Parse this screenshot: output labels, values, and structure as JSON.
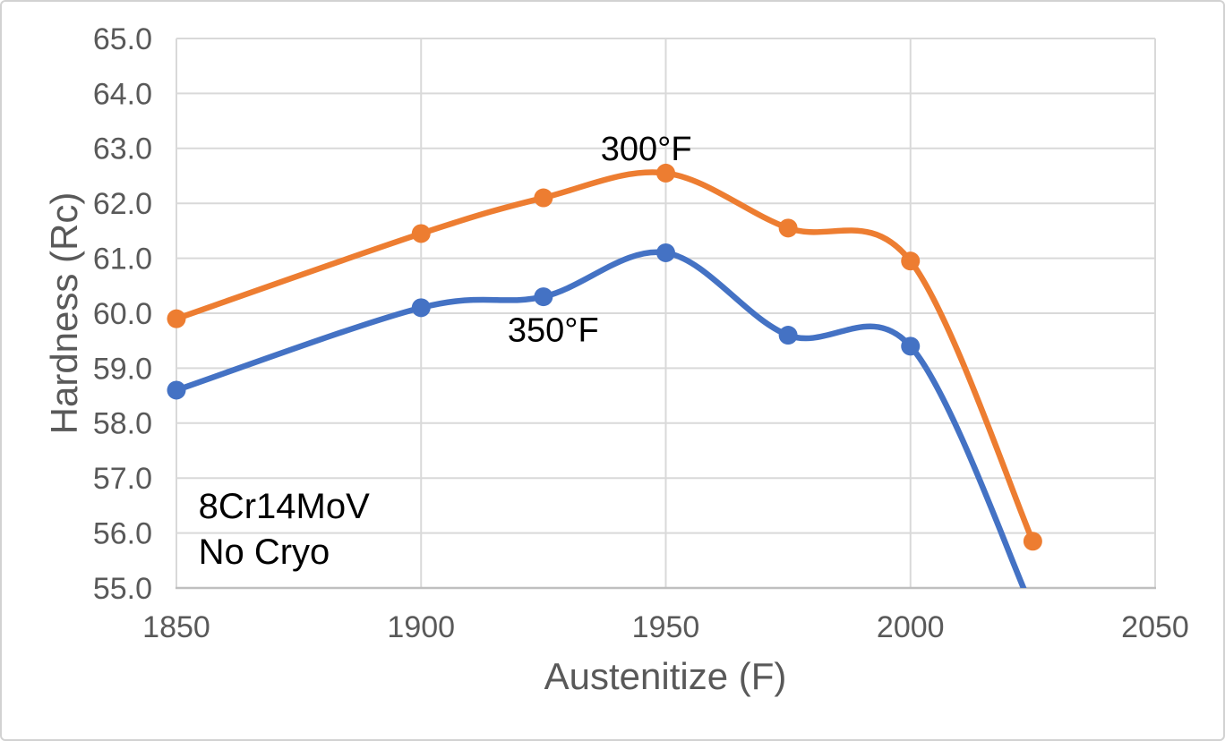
{
  "chart_data": {
    "type": "line",
    "title": "",
    "xlabel": "Austenitize (F)",
    "ylabel": "Hardness (Rc)",
    "xlim": [
      1850,
      2050
    ],
    "ylim": [
      55.0,
      65.0
    ],
    "x_ticks": [
      1850,
      1900,
      1950,
      2000,
      2050
    ],
    "x_tick_labels": [
      "1850",
      "1900",
      "1950",
      "2000",
      "2050"
    ],
    "y_ticks": [
      55,
      56,
      57,
      58,
      59,
      60,
      61,
      62,
      63,
      64,
      65
    ],
    "y_tick_labels": [
      "55.0",
      "56.0",
      "57.0",
      "58.0",
      "59.0",
      "60.0",
      "61.0",
      "62.0",
      "63.0",
      "64.0",
      "65.0"
    ],
    "grid": true,
    "legend": "none",
    "smooth": true,
    "x": [
      1850,
      1900,
      1925,
      1950,
      1975,
      2000,
      2025
    ],
    "series": [
      {
        "name": "300°F",
        "color": "#ED7D31",
        "values": [
          59.9,
          61.45,
          62.1,
          62.55,
          61.55,
          60.95,
          55.85
        ]
      },
      {
        "name": "350°F",
        "color": "#4472C4",
        "values": [
          58.6,
          60.1,
          60.3,
          61.1,
          59.6,
          59.4,
          54.6
        ],
        "last_point_clipped_below_axis": true
      }
    ],
    "annotations": [
      {
        "id": "series-label-300f",
        "text": "300°F",
        "x": 1946,
        "y": 63.0,
        "anchor": "middle",
        "role": "series-label"
      },
      {
        "id": "series-label-350f",
        "text": "350°F",
        "x": 1927,
        "y": 59.7,
        "anchor": "middle",
        "role": "series-label"
      },
      {
        "id": "steel-name",
        "text": "8Cr14MoV",
        "x": 1854.5,
        "y": 56.5,
        "anchor": "start",
        "role": "note"
      },
      {
        "id": "cryo-note",
        "text": "No Cryo",
        "x": 1854.5,
        "y": 55.67,
        "anchor": "start",
        "role": "note"
      }
    ],
    "colors": {
      "gridline": "#D9D9D9",
      "axis_line": "#BFBFBF",
      "tick_text": "#595959",
      "annotation_text": "#000000",
      "background": "#FFFFFF",
      "frame_border": "#D2D2D2"
    }
  }
}
